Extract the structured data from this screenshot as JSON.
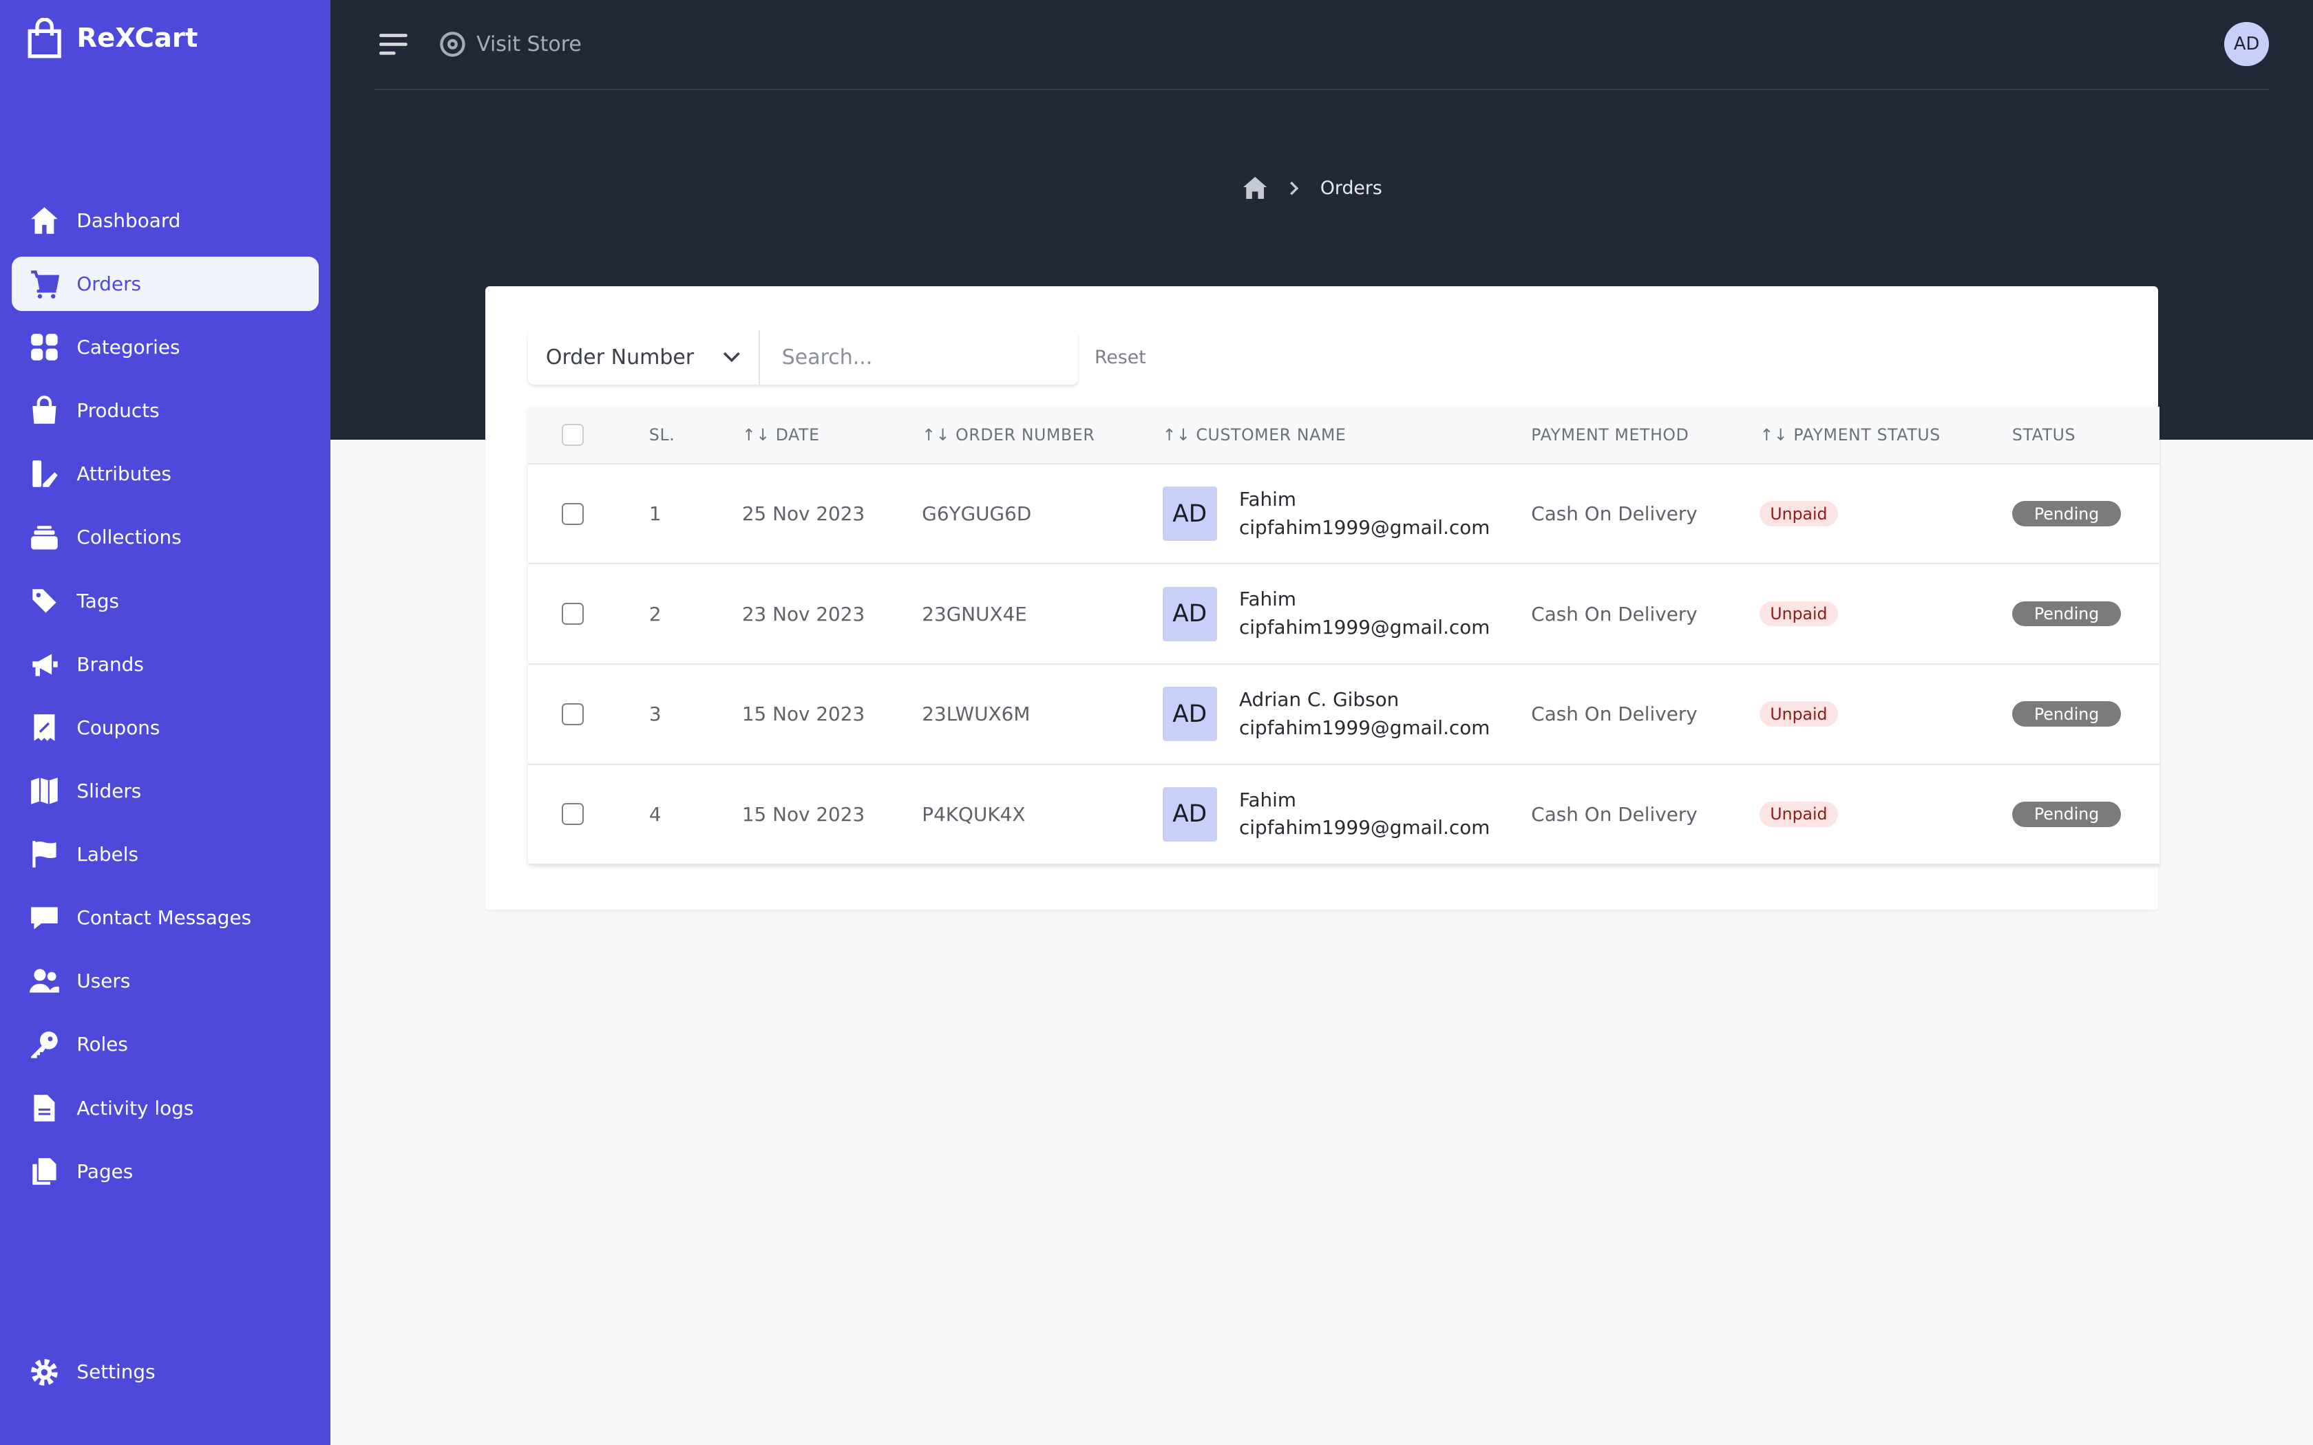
{
  "app": {
    "name": "ReXCart"
  },
  "colors": {
    "sidebar": "#4d4adb",
    "header": "#212838",
    "unpaid_bg": "#fce4e4",
    "pending_bg": "#7b7b7b"
  },
  "sidebar": {
    "items": [
      {
        "label": "Dashboard",
        "icon": "home-icon"
      },
      {
        "label": "Orders",
        "icon": "cart-icon",
        "active": true
      },
      {
        "label": "Categories",
        "icon": "grid-icon"
      },
      {
        "label": "Products",
        "icon": "bag-icon"
      },
      {
        "label": "Attributes",
        "icon": "swatch-icon"
      },
      {
        "label": "Collections",
        "icon": "layers-icon"
      },
      {
        "label": "Tags",
        "icon": "tag-icon"
      },
      {
        "label": "Brands",
        "icon": "megaphone-icon"
      },
      {
        "label": "Coupons",
        "icon": "coupon-icon"
      },
      {
        "label": "Sliders",
        "icon": "map-icon"
      },
      {
        "label": "Labels",
        "icon": "flag-icon"
      },
      {
        "label": "Contact Messages",
        "icon": "chat-icon"
      },
      {
        "label": "Users",
        "icon": "users-icon"
      },
      {
        "label": "Roles",
        "icon": "key-icon"
      },
      {
        "label": "Activity logs",
        "icon": "document-icon"
      },
      {
        "label": "Pages",
        "icon": "pages-icon"
      }
    ],
    "settings": "Settings"
  },
  "topbar": {
    "visit_store": "Visit Store",
    "avatar": "AD"
  },
  "breadcrumb": {
    "current": "Orders"
  },
  "filter": {
    "field": "Order Number",
    "search_placeholder": "Search...",
    "reset": "Reset"
  },
  "table": {
    "headers": {
      "sl": "SL.",
      "date": "↑↓ DATE",
      "order_number": "↑↓ ORDER NUMBER",
      "customer": "↑↓ CUSTOMER NAME",
      "payment_method": "PAYMENT METHOD",
      "payment_status": "↑↓ PAYMENT STATUS",
      "status": "STATUS"
    },
    "rows": [
      {
        "sl": "1",
        "date": "25 Nov 2023",
        "order": "G6YGUG6D",
        "avatar": "AD",
        "name": "Fahim",
        "email": "cipfahim1999@gmail.com",
        "method": "Cash On Delivery",
        "payment": "Unpaid",
        "status": "Pending"
      },
      {
        "sl": "2",
        "date": "23 Nov 2023",
        "order": "23GNUX4E",
        "avatar": "AD",
        "name": "Fahim",
        "email": "cipfahim1999@gmail.com",
        "method": "Cash On Delivery",
        "payment": "Unpaid",
        "status": "Pending"
      },
      {
        "sl": "3",
        "date": "15 Nov 2023",
        "order": "23LWUX6M",
        "avatar": "AD",
        "name": "Adrian C. Gibson",
        "email": "cipfahim1999@gmail.com",
        "method": "Cash On Delivery",
        "payment": "Unpaid",
        "status": "Pending"
      },
      {
        "sl": "4",
        "date": "15 Nov 2023",
        "order": "P4KQUK4X",
        "avatar": "AD",
        "name": "Fahim",
        "email": "cipfahim1999@gmail.com",
        "method": "Cash On Delivery",
        "payment": "Unpaid",
        "status": "Pending"
      }
    ]
  }
}
